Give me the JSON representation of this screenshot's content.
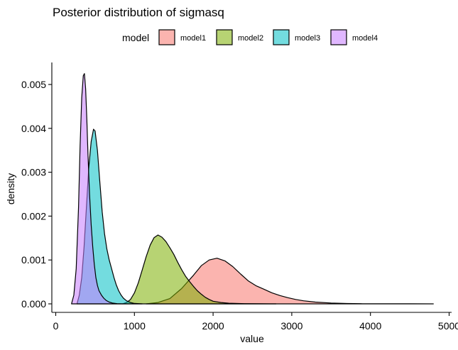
{
  "chart_data": {
    "type": "area",
    "title": "Posterior distribution of sigmasq",
    "xlabel": "value",
    "ylabel": "density",
    "xlim": [
      0,
      5000
    ],
    "ylim": [
      0,
      0.0055
    ],
    "x_ticks": [
      0,
      1000,
      2000,
      3000,
      4000,
      5000
    ],
    "x_tick_labels": [
      "0",
      "1000",
      "2000",
      "3000",
      "4000",
      "5000"
    ],
    "y_ticks": [
      0,
      0.001,
      0.002,
      0.003,
      0.004,
      0.005
    ],
    "y_tick_labels": [
      "0.000",
      "0.001",
      "0.002",
      "0.003",
      "0.004",
      "0.005"
    ],
    "grid": false,
    "legend": {
      "title": "model",
      "position": "top"
    },
    "series": [
      {
        "name": "model1",
        "color": "#F8766D",
        "x": [
          1150,
          1300,
          1450,
          1600,
          1750,
          1850,
          1950,
          2050,
          2150,
          2250,
          2350,
          2450,
          2550,
          2650,
          2750,
          2850,
          2950,
          3050,
          3150,
          3300,
          3500,
          3700,
          3900,
          4200,
          4500,
          4800
        ],
        "values": [
          0,
          3e-05,
          0.00012,
          0.00035,
          0.00065,
          0.00087,
          0.001,
          0.00104,
          0.00098,
          0.00085,
          0.00068,
          0.00052,
          0.00041,
          0.00033,
          0.00025,
          0.00019,
          0.00014,
          0.0001,
          7e-05,
          4e-05,
          2e-05,
          8e-06,
          4e-06,
          2e-06,
          1e-06,
          0
        ]
      },
      {
        "name": "model2",
        "color": "#7CAE00",
        "x": [
          850,
          900,
          950,
          1000,
          1050,
          1100,
          1150,
          1200,
          1250,
          1300,
          1350,
          1400,
          1450,
          1500,
          1550,
          1600,
          1650,
          1700,
          1750,
          1800,
          1850,
          1900,
          1950,
          2000,
          2100,
          2200,
          2400,
          2600,
          2800
        ],
        "values": [
          0,
          3e-05,
          0.0001,
          0.00025,
          0.00048,
          0.00078,
          0.00108,
          0.00134,
          0.00151,
          0.00157,
          0.00152,
          0.00142,
          0.00128,
          0.00113,
          0.00095,
          0.00078,
          0.00063,
          0.00051,
          0.0004,
          0.0003,
          0.00022,
          0.00015,
          0.0001,
          6e-05,
          3e-05,
          1.5e-05,
          5e-06,
          2e-06,
          0
        ]
      },
      {
        "name": "model3",
        "color": "#00BFC4",
        "x": [
          270,
          300,
          330,
          360,
          390,
          420,
          450,
          480,
          500,
          530,
          560,
          590,
          620,
          650,
          680,
          710,
          740,
          770,
          800,
          830,
          860,
          900,
          950,
          1000,
          1100
        ],
        "values": [
          0,
          0.0002,
          0.0006,
          0.0013,
          0.0022,
          0.0031,
          0.0037,
          0.00398,
          0.00394,
          0.0035,
          0.0028,
          0.0021,
          0.0016,
          0.00125,
          0.001,
          0.0008,
          0.0006,
          0.00043,
          0.0003,
          0.0002,
          0.00013,
          7e-05,
          3e-05,
          1e-05,
          0
        ]
      },
      {
        "name": "model4",
        "color": "#C77CFF",
        "x": [
          200,
          230,
          260,
          290,
          310,
          330,
          350,
          365,
          380,
          395,
          410,
          430,
          450,
          470,
          490,
          510,
          530,
          550,
          580,
          610,
          640,
          680,
          720,
          780,
          850
        ],
        "values": [
          0,
          0.0002,
          0.0008,
          0.0022,
          0.0036,
          0.0047,
          0.0052,
          0.00525,
          0.0049,
          0.0042,
          0.0034,
          0.0025,
          0.0018,
          0.0013,
          0.0009,
          0.0006,
          0.00042,
          0.0003,
          0.0002,
          0.00013,
          8e-05,
          4e-05,
          2e-05,
          5e-06,
          0
        ]
      }
    ]
  }
}
